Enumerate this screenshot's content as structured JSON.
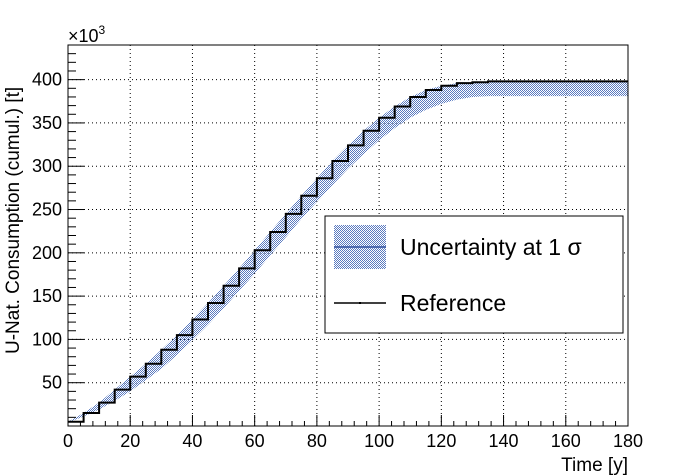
{
  "chart_data": {
    "type": "line",
    "xlabel": "Time [y]",
    "ylabel": "U-Nat. Consumption (cumul.) [t]",
    "y_multiplier_label": "×10",
    "y_multiplier_exp": "3",
    "xlim": [
      0,
      180
    ],
    "ylim": [
      0,
      440
    ],
    "x_ticks": [
      0,
      20,
      40,
      60,
      80,
      100,
      120,
      140,
      160,
      180
    ],
    "x_tick_labels": [
      "0",
      "20",
      "40",
      "60",
      "80",
      "100",
      "120",
      "140",
      "160",
      "180"
    ],
    "y_ticks": [
      50,
      100,
      150,
      200,
      250,
      300,
      350,
      400
    ],
    "y_tick_labels": [
      "50",
      "100",
      "150",
      "200",
      "250",
      "300",
      "350",
      "400"
    ],
    "grid": true,
    "legend": {
      "placement": "right",
      "entries": [
        {
          "label": "Uncertainty at 1 σ",
          "style": "band"
        },
        {
          "label": "Reference",
          "style": "line"
        }
      ]
    },
    "colors": {
      "band_fill": "#5a7ac0",
      "band_line": "#2f4f9e",
      "reference": "#000000"
    },
    "series": [
      {
        "name": "Reference",
        "style": "line",
        "x": [
          0,
          5,
          10,
          15,
          20,
          25,
          30,
          35,
          40,
          45,
          50,
          55,
          60,
          65,
          70,
          75,
          80,
          85,
          90,
          95,
          100,
          105,
          110,
          115,
          120,
          125,
          130,
          135,
          140,
          150,
          160,
          170,
          180
        ],
        "y": [
          5,
          15,
          27,
          42,
          57,
          72,
          88,
          105,
          123,
          142,
          162,
          182,
          203,
          224,
          245,
          266,
          286,
          306,
          324,
          341,
          356,
          369,
          380,
          388,
          393,
          396,
          397,
          398,
          398,
          398,
          398,
          398,
          398
        ]
      },
      {
        "name": "Uncertainty at 1 σ",
        "style": "band",
        "x": [
          0,
          5,
          10,
          15,
          20,
          25,
          30,
          35,
          40,
          45,
          50,
          55,
          60,
          65,
          70,
          75,
          80,
          85,
          90,
          95,
          100,
          105,
          110,
          115,
          120,
          125,
          130,
          135,
          140,
          150,
          160,
          170,
          180
        ],
        "upper": [
          5,
          15,
          27,
          42,
          57,
          72,
          88,
          105,
          123,
          142,
          162,
          182,
          203,
          224,
          245,
          266,
          286,
          306,
          324,
          341,
          356,
          369,
          380,
          388,
          393,
          396,
          397,
          398,
          398,
          398,
          398,
          398,
          398
        ],
        "lower": [
          4,
          11,
          19,
          29,
          40,
          53,
          66,
          82,
          99,
          117,
          136,
          156,
          176,
          197,
          218,
          239,
          259,
          278,
          297,
          314,
          330,
          344,
          356,
          365,
          372,
          377,
          380,
          381,
          381,
          381,
          381,
          381,
          381
        ]
      }
    ]
  }
}
